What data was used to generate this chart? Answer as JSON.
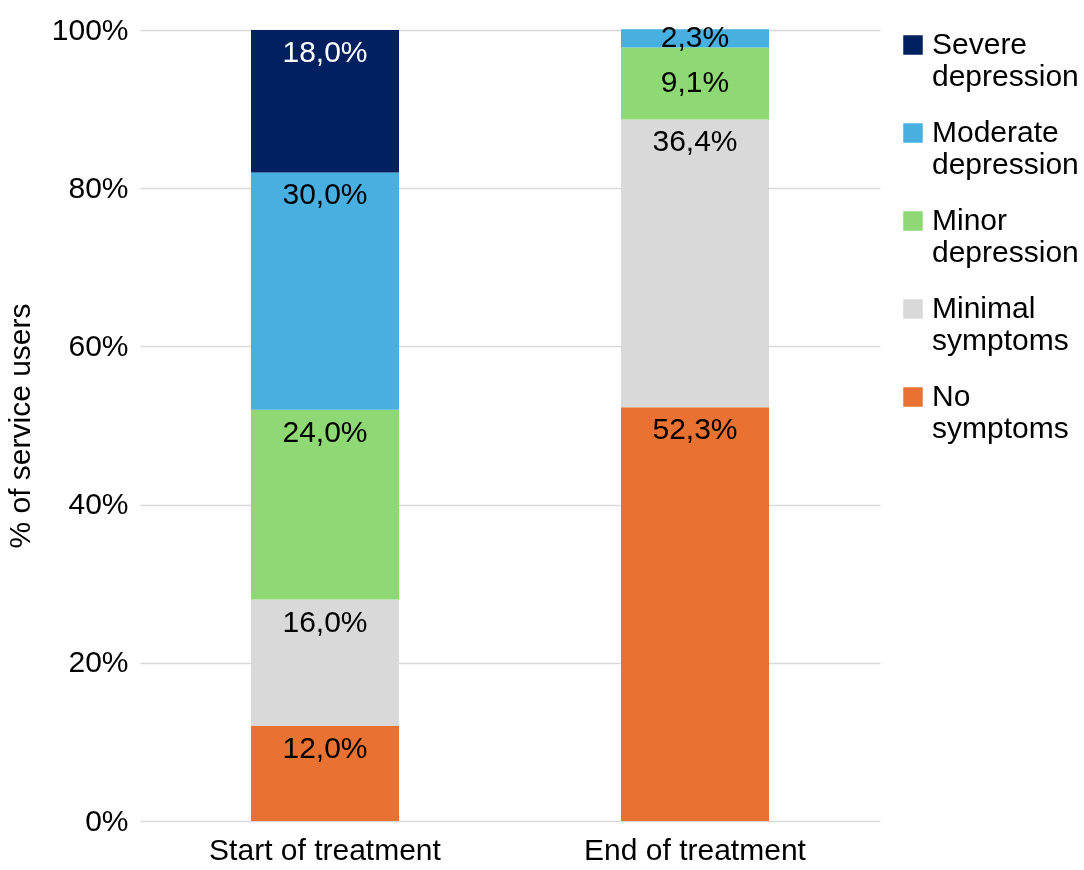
{
  "chart_data": {
    "type": "bar",
    "stacked": true,
    "ylabel": "% of service users",
    "categories": [
      "Start of treatment",
      "End of treatment"
    ],
    "series": [
      {
        "name": "No symptoms",
        "color": "#e97132",
        "values": [
          12.0,
          52.3
        ],
        "value_labels": [
          "12,0%",
          "52,3%"
        ]
      },
      {
        "name": "Minimal symptoms",
        "color": "#d9d9d9",
        "values": [
          16.0,
          36.4
        ],
        "value_labels": [
          "16,0%",
          "36,4%"
        ]
      },
      {
        "name": "Minor depression",
        "color": "#8ed973",
        "values": [
          24.0,
          9.1
        ],
        "value_labels": [
          "24,0%",
          "9,1%"
        ]
      },
      {
        "name": "Moderate depression",
        "color": "#47b0e0",
        "values": [
          30.0,
          2.3
        ],
        "value_labels": [
          "30,0%",
          "2,3%"
        ]
      },
      {
        "name": "Severe depression",
        "color": "#002060",
        "values": [
          18.0,
          null
        ],
        "value_labels": [
          "18,0%",
          null
        ]
      }
    ],
    "ylim": [
      0,
      100
    ],
    "yticks": [
      {
        "value": 0,
        "label": "0%"
      },
      {
        "value": 20,
        "label": "20%"
      },
      {
        "value": 40,
        "label": "40%"
      },
      {
        "value": 60,
        "label": "60%"
      },
      {
        "value": 80,
        "label": "80%"
      },
      {
        "value": 100,
        "label": "100%"
      }
    ],
    "grid": "y",
    "legend": "right"
  }
}
